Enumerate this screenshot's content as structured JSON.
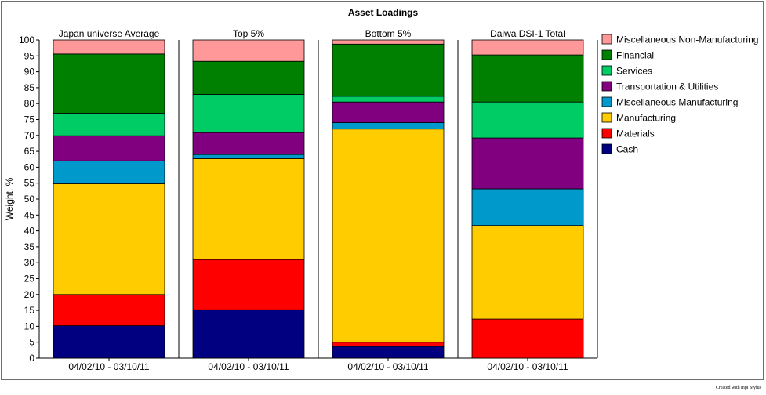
{
  "chart_data": {
    "type": "bar",
    "stacked": true,
    "title": "Asset Loadings",
    "ylabel": "Weight, %",
    "ylim": [
      0,
      100
    ],
    "yticks": [
      0,
      5,
      10,
      15,
      20,
      25,
      30,
      35,
      40,
      45,
      50,
      55,
      60,
      65,
      70,
      75,
      80,
      85,
      90,
      95,
      100
    ],
    "legend_position": "right",
    "grid": false,
    "panels": [
      {
        "title": "Japan universe Average",
        "category": "04/02/10 - 03/10/11"
      },
      {
        "title": "Top 5%",
        "category": "04/02/10 - 03/10/11"
      },
      {
        "title": "Bottom 5%",
        "category": "04/02/10 - 03/10/11"
      },
      {
        "title": "Daiwa DSI-1 Total",
        "category": "04/02/10 - 03/10/11"
      }
    ],
    "series": [
      {
        "name": "Cash",
        "color": "#000080",
        "values": [
          10.2,
          15.2,
          3.7,
          0
        ]
      },
      {
        "name": "Materials",
        "color": "#ff0000",
        "values": [
          9.8,
          15.8,
          1.3,
          12.3
        ]
      },
      {
        "name": "Manufacturing",
        "color": "#ffcc00",
        "values": [
          34.8,
          31.7,
          67,
          29.4
        ]
      },
      {
        "name": "Miscellaneous Manufacturing",
        "color": "#0099cc",
        "values": [
          7.2,
          1.3,
          2,
          11.5
        ]
      },
      {
        "name": "Transportation & Utilities",
        "color": "#800080",
        "values": [
          7.9,
          6.9,
          6.5,
          16
        ]
      },
      {
        "name": "Services",
        "color": "#00cc66",
        "values": [
          7.1,
          12,
          1.8,
          11.3
        ]
      },
      {
        "name": "Financial",
        "color": "#008000",
        "values": [
          18.6,
          10.4,
          16.4,
          14.8
        ]
      },
      {
        "name": "Miscellaneous Non-Manufacturing",
        "color": "#ff9999",
        "values": [
          4.4,
          6.7,
          1.3,
          4.7
        ]
      }
    ]
  },
  "footer": {
    "note": "Created with mpi Stylus"
  }
}
